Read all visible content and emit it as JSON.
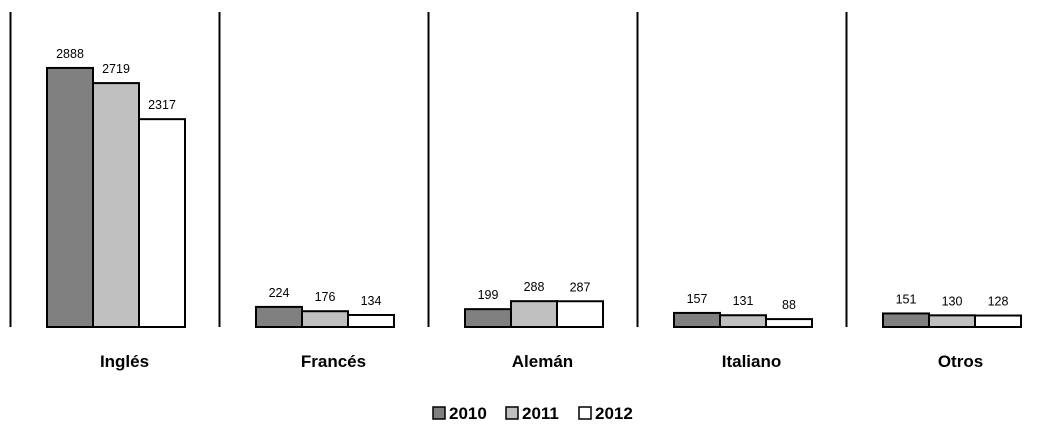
{
  "chart_data": {
    "type": "bar",
    "categories": [
      "Inglés",
      "Francés",
      "Alemán",
      "Italiano",
      "Otros"
    ],
    "series": [
      {
        "name": "2010",
        "values": [
          2888,
          224,
          199,
          157,
          151
        ],
        "color": "#808080"
      },
      {
        "name": "2011",
        "values": [
          2719,
          176,
          288,
          131,
          130
        ],
        "color": "#c0c0c0"
      },
      {
        "name": "2012",
        "values": [
          2317,
          134,
          287,
          88,
          128
        ],
        "color": "#ffffff"
      }
    ],
    "ylim": [
      0,
      3500
    ],
    "grid": false,
    "legend_position": "bottom-center",
    "bar_outline_color": "#000000"
  }
}
